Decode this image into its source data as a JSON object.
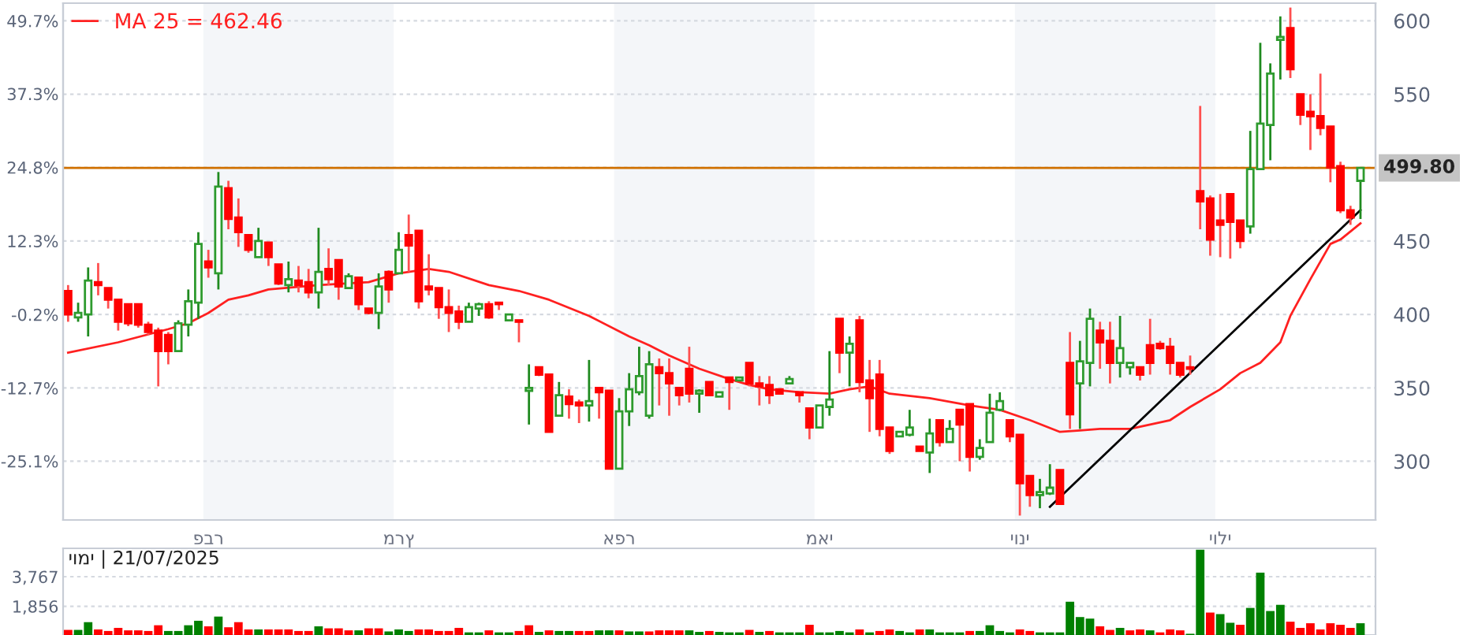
{
  "chart_data": [
    {
      "type": "candlestick",
      "categories": [
        null,
        null,
        null,
        null,
        null,
        null,
        null,
        null,
        null,
        null,
        null,
        null,
        null,
        null,
        "פבר",
        null,
        null,
        null,
        null,
        null,
        null,
        null,
        null,
        null,
        null,
        null,
        null,
        null,
        null,
        null,
        null,
        null,
        null,
        "מרץ",
        null,
        null,
        null,
        null,
        null,
        null,
        null,
        null,
        null,
        null,
        null,
        null,
        null,
        null,
        null,
        null,
        null,
        null,
        null,
        null,
        null,
        "אפר",
        null,
        null,
        null,
        null,
        null,
        null,
        null,
        null,
        null,
        null,
        null,
        null,
        null,
        null,
        null,
        null,
        null,
        null,
        null,
        "מאי",
        null,
        null,
        null,
        null,
        null,
        null,
        null,
        null,
        null,
        null,
        null,
        null,
        null,
        null,
        null,
        null,
        null,
        null,
        null,
        "יוני",
        null,
        null,
        null,
        null,
        null,
        null,
        null,
        null,
        null,
        null,
        null,
        null,
        null,
        null,
        null,
        null,
        null,
        null,
        null,
        "יולי",
        null,
        null,
        null,
        null,
        null,
        null,
        null,
        null,
        null,
        null,
        null,
        null,
        null,
        null
      ],
      "ohlc": [
        [
          416,
          420,
          395,
          400
        ],
        [
          398,
          408,
          395,
          401
        ],
        [
          400,
          432,
          385,
          423
        ],
        [
          422,
          435,
          413,
          420
        ],
        [
          418,
          418,
          404,
          410
        ],
        [
          410,
          410,
          389,
          395
        ],
        [
          407,
          407,
          392,
          394
        ],
        [
          407,
          407,
          391,
          393
        ],
        [
          393,
          395,
          386,
          388
        ],
        [
          389,
          391,
          351,
          375
        ],
        [
          386,
          388,
          366,
          375
        ],
        [
          375,
          396,
          375,
          394
        ],
        [
          393,
          417,
          385,
          409
        ],
        [
          408,
          456,
          397,
          448
        ],
        [
          436,
          444,
          425,
          432
        ],
        [
          428,
          497,
          417,
          487
        ],
        [
          486,
          491,
          458,
          465
        ],
        [
          466,
          479,
          446,
          456
        ],
        [
          454,
          454,
          442,
          444
        ],
        [
          439,
          459,
          439,
          450
        ],
        [
          449,
          449,
          433,
          439
        ],
        [
          434,
          434,
          420,
          421
        ],
        [
          420,
          436,
          415,
          424
        ],
        [
          423,
          433,
          415,
          420
        ],
        [
          422,
          431,
          411,
          415
        ],
        [
          415,
          459,
          404,
          429
        ],
        [
          431,
          445,
          420,
          424
        ],
        [
          437,
          437,
          410,
          419
        ],
        [
          418,
          428,
          418,
          426
        ],
        [
          425,
          425,
          403,
          407
        ],
        [
          404,
          404,
          400,
          401
        ],
        [
          401,
          428,
          390,
          419
        ],
        [
          429,
          430,
          408,
          417
        ],
        [
          428,
          456,
          428,
          444
        ],
        [
          454,
          468,
          429,
          447
        ],
        [
          457,
          457,
          404,
          409
        ],
        [
          419,
          441,
          413,
          417
        ],
        [
          418,
          418,
          397,
          405
        ],
        [
          405,
          417,
          388,
          401
        ],
        [
          402,
          406,
          390,
          395
        ],
        [
          395,
          408,
          395,
          405
        ],
        [
          404,
          408,
          399,
          407
        ],
        [
          407,
          409,
          397,
          398
        ],
        [
          408,
          408,
          403,
          407
        ],
        [
          396,
          400,
          396,
          400
        ],
        [
          396,
          396,
          381,
          395
        ],
        [
          348,
          366,
          325,
          350
        ],
        [
          364,
          364,
          358,
          359
        ],
        [
          359,
          359,
          320,
          320
        ],
        [
          331,
          354,
          331,
          345
        ],
        [
          344,
          349,
          329,
          339
        ],
        [
          340,
          342,
          326,
          338
        ],
        [
          338,
          369,
          327,
          341
        ],
        [
          350,
          350,
          329,
          347
        ],
        [
          348,
          348,
          295,
          295
        ],
        [
          295,
          343,
          295,
          334
        ],
        [
          334,
          360,
          324,
          349
        ],
        [
          347,
          378,
          345,
          358
        ],
        [
          331,
          375,
          329,
          366
        ],
        [
          364,
          370,
          338,
          360
        ],
        [
          360,
          370,
          331,
          353
        ],
        [
          350,
          350,
          338,
          345
        ],
        [
          363,
          378,
          340,
          346
        ],
        [
          346,
          349,
          333,
          348
        ],
        [
          354,
          354,
          345,
          345
        ],
        [
          344,
          347,
          344,
          347
        ],
        [
          357,
          357,
          335,
          354
        ],
        [
          355,
          357,
          355,
          357
        ],
        [
          367,
          367,
          351,
          353
        ],
        [
          353,
          358,
          338,
          351
        ],
        [
          352,
          358,
          339,
          345
        ],
        [
          349,
          349,
          346,
          346
        ],
        [
          353,
          358,
          353,
          356
        ],
        [
          347,
          347,
          340,
          345
        ],
        [
          336,
          336,
          315,
          323
        ],
        [
          323,
          338,
          323,
          338
        ],
        [
          337,
          375,
          331,
          342
        ],
        [
          397,
          397,
          360,
          374
        ],
        [
          374,
          385,
          351,
          380
        ],
        [
          396,
          399,
          347,
          354
        ],
        [
          355,
          369,
          320,
          343
        ],
        [
          359,
          369,
          317,
          322
        ],
        [
          323,
          323,
          305,
          307
        ],
        [
          317,
          320,
          317,
          320
        ],
        [
          318,
          335,
          317,
          323
        ],
        [
          310,
          310,
          307,
          307
        ],
        [
          306,
          329,
          292,
          319
        ],
        [
          328,
          328,
          310,
          313
        ],
        [
          313,
          328,
          313,
          322
        ],
        [
          335,
          335,
          300,
          325
        ],
        [
          339,
          339,
          293,
          303
        ],
        [
          303,
          315,
          301,
          309
        ],
        [
          313,
          346,
          313,
          333
        ],
        [
          335,
          347,
          334,
          341
        ],
        [
          328,
          328,
          313,
          317
        ],
        [
          318,
          318,
          263,
          285
        ],
        [
          290,
          290,
          269,
          277
        ],
        [
          277,
          288,
          268,
          279
        ],
        [
          278,
          298,
          277,
          282
        ],
        [
          294,
          294,
          271,
          271
        ],
        [
          367,
          388,
          322,
          332
        ],
        [
          353,
          382,
          322,
          368
        ],
        [
          367,
          404,
          351,
          397
        ],
        [
          389,
          395,
          363,
          381
        ],
        [
          382,
          395,
          353,
          367
        ],
        [
          367,
          399,
          357,
          377
        ],
        [
          364,
          367,
          359,
          367
        ],
        [
          364,
          364,
          355,
          359
        ],
        [
          379,
          397,
          359,
          367
        ],
        [
          380,
          382,
          376,
          377
        ],
        [
          378,
          384,
          359,
          367
        ],
        [
          367,
          367,
          357,
          359
        ],
        [
          364,
          372,
          359,
          363
        ],
        [
          484,
          542,
          458,
          477
        ],
        [
          479,
          481,
          440,
          451
        ],
        [
          464,
          482,
          439,
          461
        ],
        [
          482,
          482,
          438,
          463
        ],
        [
          464,
          464,
          445,
          450
        ],
        [
          460,
          525,
          455,
          499
        ],
        [
          499,
          585,
          499,
          530
        ],
        [
          529,
          571,
          505,
          564
        ],
        [
          587,
          603,
          560,
          589
        ],
        [
          595,
          609,
          561,
          567
        ],
        [
          550,
          550,
          529,
          536
        ],
        [
          538,
          550,
          512,
          535
        ],
        [
          535,
          564,
          522,
          527
        ],
        [
          528,
          528,
          490,
          500
        ],
        [
          501,
          504,
          469,
          471
        ],
        [
          471,
          474,
          461,
          466
        ],
        [
          491,
          499.8,
          465,
          499.8
        ]
      ],
      "series": [
        {
          "name": "MA 25 = 462.46",
          "type": "line",
          "color": "#ff2020",
          "values": [
            374,
            null,
            null,
            null,
            null,
            381,
            null,
            null,
            null,
            null,
            390,
            null,
            394,
            null,
            401,
            null,
            410,
            null,
            413,
            null,
            417,
            null,
            null,
            null,
            null,
            420,
            null,
            null,
            null,
            null,
            422,
            null,
            null,
            428,
            null,
            null,
            431,
            null,
            429,
            null,
            null,
            null,
            420,
            null,
            null,
            416,
            null,
            null,
            410,
            null,
            null,
            null,
            399,
            null,
            null,
            null,
            385,
            null,
            379,
            null,
            372,
            null,
            null,
            363,
            null,
            null,
            356,
            null,
            352,
            null,
            349,
            null,
            null,
            347,
            null,
            null,
            346,
            null,
            349,
            null,
            351,
            null,
            346,
            null,
            null,
            null,
            343,
            null,
            null,
            null,
            338,
            null,
            null,
            335,
            null,
            null,
            328,
            null,
            null,
            320,
            null,
            321,
            null,
            322,
            null,
            null,
            322,
            null,
            null,
            null,
            328,
            null,
            337,
            null,
            null,
            349,
            null,
            360,
            null,
            367,
            null,
            381,
            399,
            null,
            424,
            null,
            448,
            451,
            null,
            462
          ]
        },
        {
          "type": "line",
          "color": "#000000",
          "values": [
            null,
            null,
            null,
            null,
            null,
            null,
            null,
            null,
            null,
            null,
            null,
            null,
            null,
            null,
            null,
            null,
            null,
            null,
            null,
            null,
            null,
            null,
            null,
            null,
            null,
            null,
            null,
            null,
            null,
            null,
            null,
            null,
            null,
            null,
            null,
            null,
            null,
            null,
            null,
            null,
            null,
            null,
            null,
            null,
            null,
            null,
            null,
            null,
            null,
            null,
            null,
            null,
            null,
            null,
            null,
            null,
            null,
            null,
            null,
            null,
            null,
            null,
            null,
            null,
            null,
            null,
            null,
            null,
            null,
            null,
            null,
            null,
            null,
            null,
            null,
            null,
            null,
            null,
            null,
            null,
            null,
            null,
            null,
            null,
            null,
            null,
            null,
            null,
            null,
            null,
            null,
            null,
            null,
            null,
            null,
            null,
            null,
            null,
            269,
            null,
            null,
            null,
            null,
            null,
            null,
            null,
            null,
            null,
            null,
            null,
            null,
            null,
            null,
            null,
            null,
            null,
            null,
            null,
            null,
            null,
            null,
            null,
            null,
            null,
            null,
            null,
            null,
            null,
            null,
            471
          ]
        }
      ],
      "ylim": [
        260,
        612
      ],
      "yticks": [
        300,
        350,
        400,
        {
          "value": 500,
          "label": null
        },
        450,
        550,
        600
      ],
      "y2lim": [
        -35.1,
        52.7
      ],
      "y2ticks": [
        {
          "value": 49.7,
          "label": "49.7%"
        },
        {
          "value": 37.3,
          "label": "37.3%"
        },
        {
          "value": 24.8,
          "label": "24.8%"
        },
        {
          "value": 12.3,
          "label": "12.3%"
        },
        {
          "value": -0.2,
          "label": "-0.2%"
        },
        {
          "value": -12.7,
          "label": "-12.7%"
        },
        {
          "value": -25.1,
          "label": "-25.1%"
        }
      ],
      "ref_lines": [
        {
          "axis": "y",
          "value": 499.8,
          "label": "499.80",
          "color": "#d07000"
        }
      ],
      "bands": [
        {
          "axis": "x",
          "from": "פבר",
          "to": "מרץ",
          "color": "#f4f6f9"
        },
        {
          "axis": "x",
          "from": "אפר",
          "to": "מאי",
          "color": "#f4f6f9"
        },
        {
          "axis": "x",
          "from": "יוני",
          "to": "יולי",
          "color": "#f4f6f9"
        }
      ],
      "grid": "y",
      "legend": "top left"
    },
    {
      "type": "bar",
      "categories": [
        null,
        null,
        null,
        null,
        null,
        null,
        null,
        null,
        null,
        null,
        null,
        null,
        null,
        null,
        null,
        null,
        null,
        null,
        null,
        null,
        null,
        null,
        null,
        null,
        null,
        null,
        null,
        null,
        null,
        null,
        null,
        null,
        null,
        null,
        null,
        null,
        null,
        null,
        null,
        null,
        null,
        null,
        null,
        null,
        null,
        null,
        null,
        null,
        null,
        null,
        null,
        null,
        null,
        null,
        null,
        null,
        null,
        null,
        null,
        null,
        null,
        null,
        null,
        null,
        null,
        null,
        null,
        null,
        null,
        null,
        null,
        null,
        null,
        null,
        null,
        null,
        null,
        null,
        null,
        null,
        null,
        null,
        null,
        null,
        null,
        null,
        null,
        null,
        null,
        null,
        null,
        null,
        null,
        null,
        null,
        null,
        null,
        null,
        null,
        null,
        null,
        null,
        null,
        null,
        null,
        null,
        null,
        null,
        null,
        null,
        null,
        null,
        null,
        null,
        null,
        null,
        null,
        null,
        null,
        null,
        null,
        null,
        null,
        null,
        null,
        null,
        null,
        null,
        null,
        null
      ],
      "values": [
        330,
        330,
        830,
        360,
        260,
        460,
        300,
        300,
        260,
        630,
        260,
        260,
        630,
        920,
        560,
        1190,
        500,
        830,
        360,
        360,
        360,
        360,
        360,
        260,
        260,
        560,
        430,
        430,
        300,
        300,
        430,
        430,
        230,
        360,
        260,
        360,
        360,
        260,
        260,
        460,
        170,
        170,
        300,
        170,
        170,
        260,
        630,
        200,
        300,
        260,
        260,
        260,
        260,
        300,
        300,
        300,
        230,
        230,
        230,
        300,
        300,
        300,
        300,
        200,
        260,
        200,
        170,
        170,
        330,
        200,
        260,
        170,
        170,
        170,
        660,
        170,
        170,
        260,
        170,
        360,
        170,
        260,
        360,
        260,
        170,
        360,
        360,
        170,
        170,
        170,
        260,
        260,
        630,
        260,
        170,
        360,
        260,
        170,
        170,
        170,
        2150,
        1160,
        1060,
        560,
        330,
        460,
        300,
        360,
        300,
        170,
        360,
        300,
        80,
        5510,
        1450,
        1350,
        790,
        660,
        1750,
        4030,
        1550,
        1950,
        860,
        460,
        760,
        360,
        760,
        660,
        460,
        760
      ],
      "colors": [
        "#ff0000",
        "#008000",
        "#008000",
        "#ff0000",
        "#ff0000",
        "#ff0000",
        "#ff0000",
        "#ff0000",
        "#ff0000",
        "#ff0000",
        "#008000",
        "#008000",
        "#008000",
        "#008000",
        "#ff0000",
        "#008000",
        "#ff0000",
        "#ff0000",
        "#ff0000",
        "#008000",
        "#ff0000",
        "#ff0000",
        "#ff0000",
        "#ff0000",
        "#ff0000",
        "#008000",
        "#ff0000",
        "#ff0000",
        "#ff0000",
        "#008000",
        "#ff0000",
        "#ff0000",
        "#008000",
        "#008000",
        "#008000",
        "#ff0000",
        "#ff0000",
        "#ff0000",
        "#ff0000",
        "#ff0000",
        "#008000",
        "#008000",
        "#ff0000",
        "#008000",
        "#008000",
        "#ff0000",
        "#ff0000",
        "#008000",
        "#ff0000",
        "#008000",
        "#008000",
        "#ff0000",
        "#ff0000",
        "#008000",
        "#008000",
        "#ff0000",
        "#008000",
        "#008000",
        "#ff0000",
        "#ff0000",
        "#ff0000",
        "#ff0000",
        "#008000",
        "#008000",
        "#ff0000",
        "#008000",
        "#008000",
        "#008000",
        "#ff0000",
        "#008000",
        "#ff0000",
        "#008000",
        "#008000",
        "#008000",
        "#ff0000",
        "#008000",
        "#008000",
        "#008000",
        "#008000",
        "#ff0000",
        "#008000",
        "#ff0000",
        "#ff0000",
        "#008000",
        "#008000",
        "#ff0000",
        "#008000",
        "#008000",
        "#008000",
        "#008000",
        "#ff0000",
        "#008000",
        "#008000",
        "#008000",
        "#008000",
        "#ff0000",
        "#ff0000",
        "#008000",
        "#008000",
        "#008000",
        "#008000",
        "#008000",
        "#008000",
        "#ff0000",
        "#ff0000",
        "#008000",
        "#ff0000",
        "#ff0000",
        "#008000",
        "#ff0000",
        "#ff0000",
        "#ff0000",
        "#008000",
        "#008000",
        "#ff0000",
        "#008000",
        "#008000",
        "#ff0000",
        "#008000",
        "#008000",
        "#008000",
        "#008000",
        "#ff0000",
        "#ff0000",
        "#ff0000",
        "#ff0000",
        "#ff0000",
        "#ff0000",
        "#ff0000",
        "#008000"
      ],
      "ylim": [
        0,
        5600
      ],
      "yticks": [
        {
          "value": 1856,
          "label": "1,856"
        },
        {
          "value": 3767,
          "label": "3,767"
        }
      ],
      "annotations": [
        "יומי | 21/07/2025"
      ],
      "grid": "y",
      "tick_labels": "y"
    }
  ]
}
